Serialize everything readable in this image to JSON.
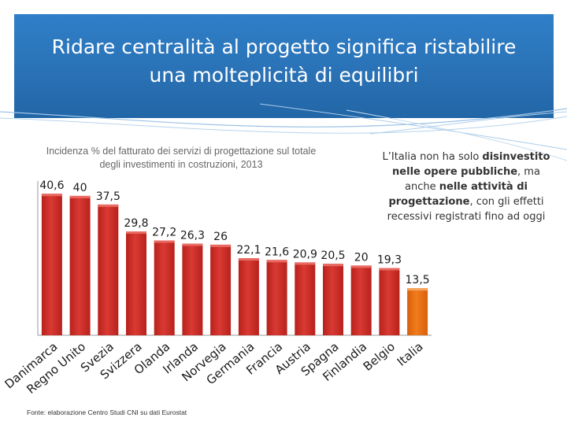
{
  "slide": {
    "title_lines": [
      "Ridare centralità al progetto significa ristabilire",
      "una molteplicità di equilibri"
    ],
    "subtitle_lines": [
      "Incidenza % del fatturato dei servizi di progettazione sul totale",
      "degli investimenti in costruzioni, 2013"
    ],
    "side_text": {
      "p1": "L’Italia non ha solo ",
      "b1": "disinvestito nelle opere pubbliche",
      "p2": ", ma anche ",
      "b2": "nelle attività di progettazione",
      "p3": ", con gli effetti recessivi registrati fino ad oggi"
    },
    "footnote": "Fonte: elaborazione Centro Studi CNI su dati Eurostat"
  },
  "colors": {
    "header": "#2a72b6",
    "bar": "#d93a33",
    "bar_dark": "#b8211c",
    "highlight": "#f07c1c",
    "highlight_dark": "#d9600c",
    "axis": "#999999"
  },
  "chart_data": {
    "type": "bar",
    "title": "Incidenza % del fatturato dei servizi di progettazione sul totale degli investimenti in costruzioni, 2013",
    "categories": [
      "Danimarca",
      "Regno Unito",
      "Svezia",
      "Svizzera",
      "Olanda",
      "Irlanda",
      "Norvegia",
      "Germania",
      "Francia",
      "Austria",
      "Spagna",
      "Finlandia",
      "Belgio",
      "Italia"
    ],
    "values": [
      40.6,
      40,
      37.5,
      29.8,
      27.2,
      26.3,
      26,
      22.1,
      21.6,
      20.9,
      20.5,
      20,
      19.3,
      13.5
    ],
    "labels": [
      "40,6",
      "40",
      "37,5",
      "29,8",
      "27,2",
      "26,3",
      "26",
      "22,1",
      "21,6",
      "20,9",
      "20,5",
      "20",
      "19,3",
      "13,5"
    ],
    "highlight": "Italia",
    "ylim": [
      0,
      42
    ],
    "grid": false,
    "legend": "none"
  }
}
